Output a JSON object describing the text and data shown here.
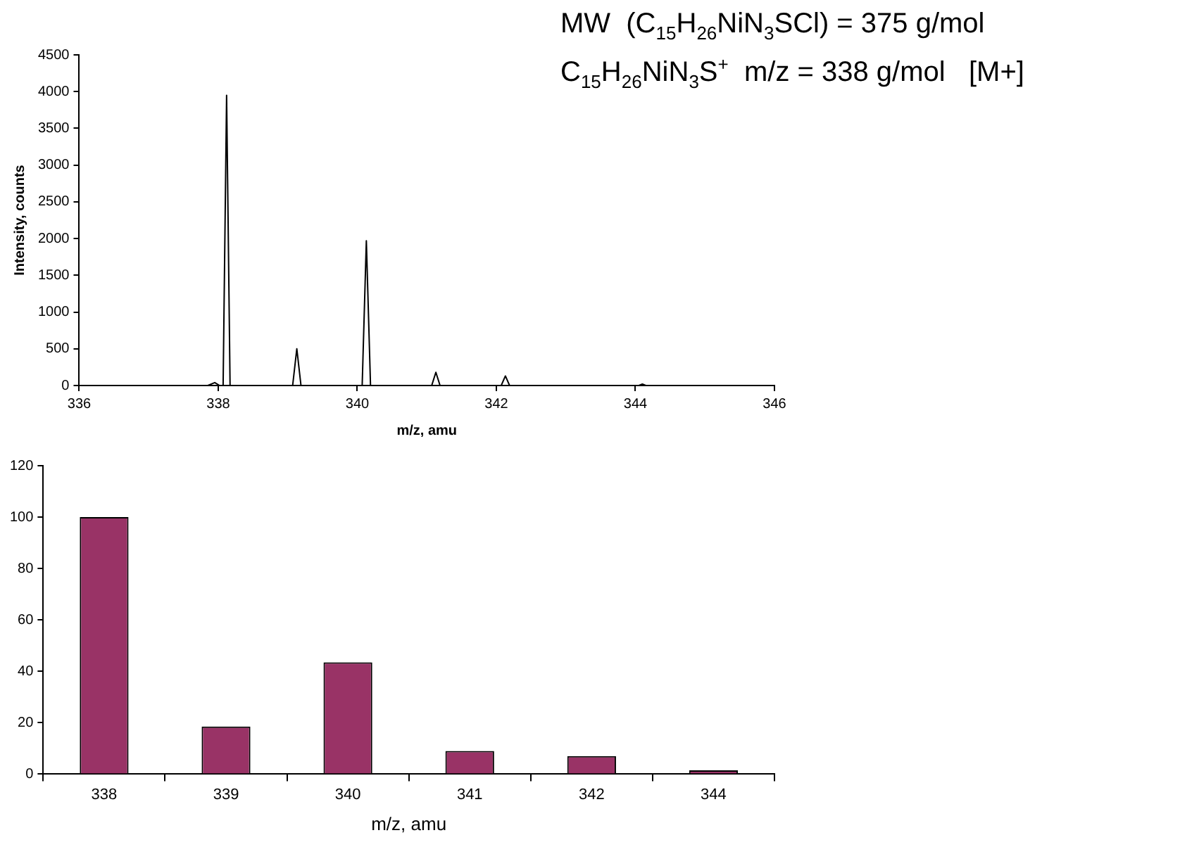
{
  "chart_data": [
    {
      "type": "line",
      "xlabel": "m/z, amu",
      "ylabel": "Intensity, counts",
      "annotations": [
        "MW  (C$_{15}$H$_{26}$NiN$_{3}$SCl) = 375 g/mol",
        "C$_{15}$H$_{26}$NiN$_{3}$S$^{+}$  m/z = 338 g/mol   [M+]"
      ],
      "series": [
        {
          "color": "#000000",
          "x": [
            336,
            337.85,
            337.95,
            338.02,
            338.07,
            338.12,
            338.17,
            339.07,
            339.13,
            339.19,
            340.07,
            340.13,
            340.19,
            341.07,
            341.13,
            341.19,
            342.07,
            342.13,
            342.19,
            344.05,
            344.1,
            344.15,
            346
          ],
          "values": [
            0,
            0,
            40,
            0,
            0,
            3950,
            0,
            0,
            500,
            0,
            0,
            1970,
            0,
            0,
            180,
            0,
            0,
            130,
            0,
            0,
            20,
            0,
            0
          ]
        }
      ],
      "xlim": [
        336,
        346
      ],
      "xticks": [
        336,
        338,
        340,
        342,
        344,
        346
      ],
      "ylim": [
        0,
        4500
      ],
      "yticks": [
        0,
        500,
        1000,
        1500,
        2000,
        2500,
        3000,
        3500,
        4000,
        4500
      ],
      "grid": false,
      "legend": false,
      "marker": "none",
      "line_style": "solid"
    },
    {
      "type": "bar",
      "xlabel": "m/z, amu",
      "categories": [
        "338",
        "339",
        "340",
        "341",
        "342",
        "344"
      ],
      "series": [
        {
          "color": "#993366",
          "values": [
            100,
            18.5,
            43.5,
            9,
            7,
            1.5
          ]
        }
      ],
      "ylim": [
        0,
        120
      ],
      "yticks": [
        0,
        20,
        40,
        60,
        80,
        100,
        120
      ],
      "grid": false,
      "legend": false
    }
  ]
}
